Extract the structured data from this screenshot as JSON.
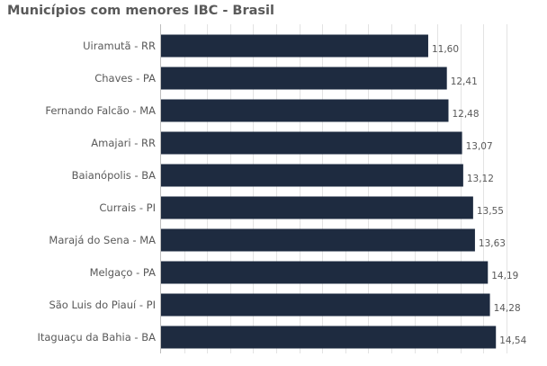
{
  "chart_data": {
    "type": "bar",
    "orientation": "horizontal",
    "title": "Municípios com menores IBC - Brasil",
    "xlabel": "",
    "ylabel": "",
    "categories": [
      "Uiramutã - RR",
      "Chaves - PA",
      "Fernando Falcão - MA",
      "Amajari - RR",
      "Baianópolis - BA",
      "Currais - PI",
      "Marajá do Sena - MA",
      "Melgaço - PA",
      "São Luis do Piauí - PI",
      "Itaguaçu da Bahia - BA"
    ],
    "values": [
      11.6,
      12.41,
      12.48,
      13.07,
      13.12,
      13.55,
      13.63,
      14.19,
      14.28,
      14.54
    ],
    "value_labels": [
      "11,60",
      "12,41",
      "12,48",
      "13,07",
      "13,12",
      "13,55",
      "13,63",
      "14,19",
      "14,28",
      "14,54"
    ],
    "xlim": [
      0,
      15
    ],
    "grid": true,
    "legend": "none",
    "bar_color": "#1e2b40",
    "text_color": "#595959",
    "grid_color": "#e3e3e3"
  }
}
